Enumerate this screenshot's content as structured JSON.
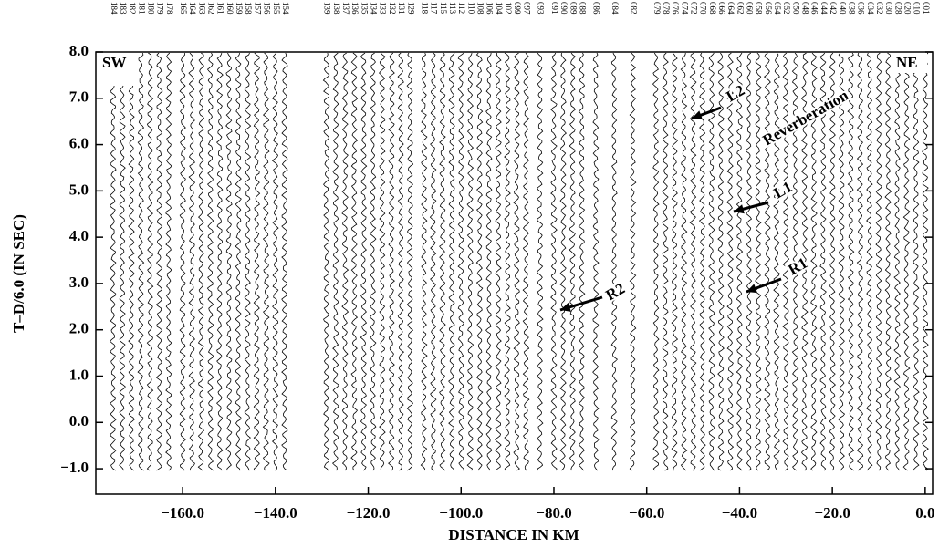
{
  "chart_data": {
    "type": "wiggle",
    "xlabel": "DISTANCE IN KM",
    "ylabel": "T–D/6.0 (IN SEC)",
    "xlim": [
      -178.7,
      1.6
    ],
    "ylim": [
      -1.55,
      8.0
    ],
    "xticks": [
      {
        "value": -160,
        "label": "−160.0"
      },
      {
        "value": -140,
        "label": "−140.0"
      },
      {
        "value": -120,
        "label": "−120.0"
      },
      {
        "value": -100,
        "label": "−100.0"
      },
      {
        "value": -80,
        "label": "−80.0"
      },
      {
        "value": -60,
        "label": "−60.0"
      },
      {
        "value": -40,
        "label": "−40.0"
      },
      {
        "value": -20,
        "label": "−20.0"
      },
      {
        "value": 0,
        "label": "0.0"
      }
    ],
    "yticks": [
      {
        "value": -1,
        "label": "−1.0"
      },
      {
        "value": 0,
        "label": "0.0"
      },
      {
        "value": 1,
        "label": "1.0"
      },
      {
        "value": 2,
        "label": "2.0"
      },
      {
        "value": 3,
        "label": "3.0"
      },
      {
        "value": 4,
        "label": "4.0"
      },
      {
        "value": 5,
        "label": "5.0"
      },
      {
        "value": 6,
        "label": "6.0"
      },
      {
        "value": 7,
        "label": "7.0"
      },
      {
        "value": 8,
        "label": "8.0"
      }
    ],
    "annotations": [
      "SW",
      "NE",
      "L2",
      "Reverberation",
      "L1",
      "R1",
      "R2"
    ],
    "color": "#000000",
    "x": [
      -175,
      -173,
      -171,
      -169,
      -167,
      -165,
      -163,
      -160,
      -158,
      -156,
      -154,
      -152,
      -150,
      -148,
      -146,
      -144,
      -142,
      -140,
      -138,
      -129,
      -127,
      -125,
      -123,
      -121,
      -119,
      -117,
      -115,
      -113,
      -111,
      -108,
      -106,
      -104,
      -102,
      -100,
      -98,
      -96,
      -94,
      -92,
      -90,
      -88,
      -86,
      -83,
      -80,
      -78,
      -76,
      -74,
      -71,
      -67,
      -63,
      -58,
      -56,
      -54,
      -52,
      -50,
      -48,
      -46,
      -44,
      -42,
      -40,
      -38,
      -36,
      -34,
      -32,
      -30,
      -28,
      -26,
      -24,
      -22,
      -20,
      -18,
      -16,
      -14,
      -12,
      -10,
      -8,
      -6,
      -4,
      -2,
      0
    ],
    "trace_labels": [
      "184",
      "183",
      "182",
      "181",
      "180",
      "179",
      "178",
      "165",
      "164",
      "163",
      "162",
      "161",
      "160",
      "159",
      "158",
      "157",
      "156",
      "155",
      "154",
      "139",
      "138",
      "137",
      "136",
      "135",
      "134",
      "133",
      "132",
      "131",
      "129",
      "118",
      "117",
      "115",
      "113",
      "112",
      "110",
      "108",
      "106",
      "104",
      "102",
      "099",
      "097",
      "093",
      "091",
      "090",
      "089",
      "088",
      "086",
      "084",
      "082",
      "079",
      "078",
      "076",
      "074",
      "072",
      "070",
      "068",
      "066",
      "064",
      "062",
      "060",
      "058",
      "056",
      "054",
      "052",
      "050",
      "048",
      "046",
      "044",
      "042",
      "040",
      "038",
      "036",
      "034",
      "032",
      "030",
      "028",
      "020",
      "010",
      "001"
    ]
  }
}
